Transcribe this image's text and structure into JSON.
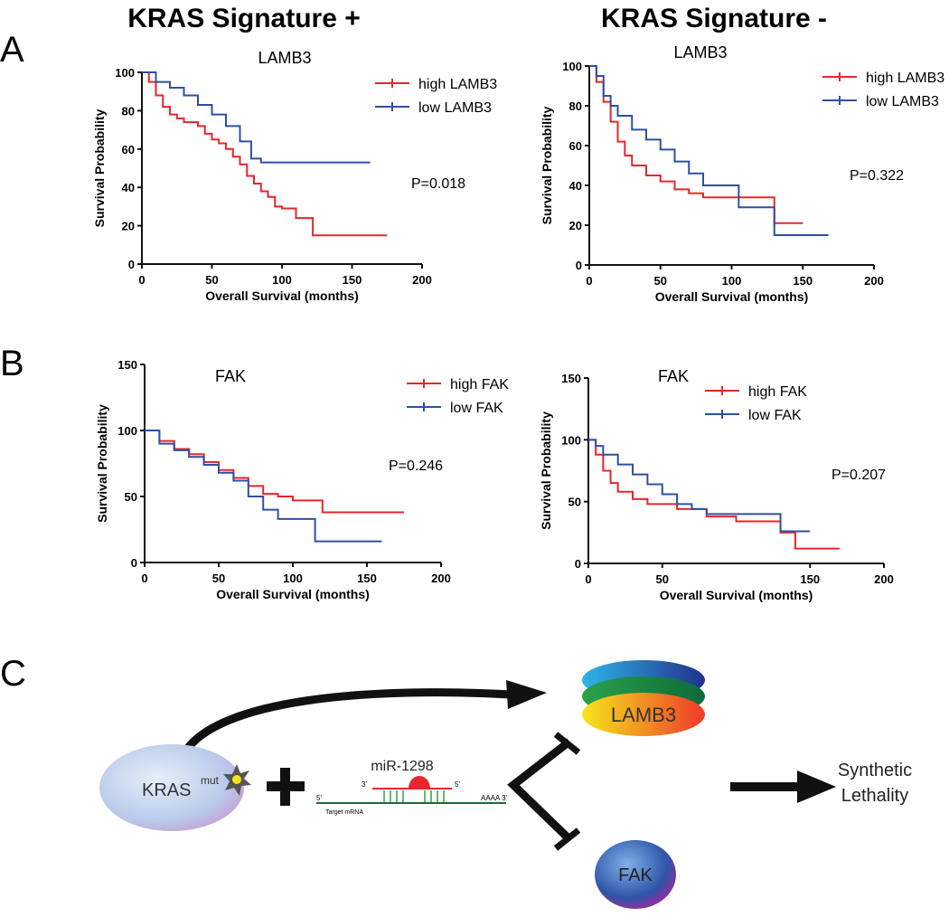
{
  "headers": [
    "KRAS Signature +",
    "KRAS Signature -"
  ],
  "panel_labels": [
    "A",
    "B",
    "C"
  ],
  "chart_data": [
    {
      "type": "line",
      "step": true,
      "title": "LAMB3",
      "xlabel": "Overall Survival (months)",
      "ylabel": "Survival Probability",
      "annotation": "P=0.018",
      "xlim": [
        0,
        200
      ],
      "ylim": [
        0,
        100
      ],
      "xticks": [
        0,
        50,
        100,
        150,
        200
      ],
      "yticks": [
        0,
        20,
        40,
        60,
        80,
        100
      ],
      "series": [
        {
          "name": "high LAMB3",
          "color": "#e8262b",
          "x": [
            0,
            5,
            10,
            15,
            20,
            25,
            30,
            40,
            45,
            50,
            55,
            60,
            65,
            70,
            75,
            80,
            85,
            90,
            95,
            100,
            110,
            122,
            175
          ],
          "values": [
            100,
            95,
            88,
            82,
            78,
            76,
            74,
            72,
            68,
            65,
            63,
            60,
            56,
            52,
            46,
            42,
            38,
            35,
            30,
            29,
            24,
            15,
            15
          ]
        },
        {
          "name": "low LAMB3",
          "color": "#2e4fa3",
          "x": [
            0,
            10,
            20,
            30,
            40,
            50,
            60,
            70,
            78,
            85,
            163
          ],
          "values": [
            100,
            95,
            92,
            88,
            83,
            78,
            72,
            64,
            55,
            53,
            53
          ]
        }
      ]
    },
    {
      "type": "line",
      "step": true,
      "title": "LAMB3",
      "xlabel": "Overall Survival (months)",
      "ylabel": "Survival Probability",
      "annotation": "P=0.322",
      "xlim": [
        0,
        200
      ],
      "ylim": [
        0,
        100
      ],
      "xticks": [
        0,
        50,
        100,
        150,
        200
      ],
      "yticks": [
        0,
        20,
        40,
        60,
        80,
        100
      ],
      "series": [
        {
          "name": "high LAMB3",
          "color": "#e8262b",
          "x": [
            0,
            5,
            10,
            15,
            20,
            25,
            30,
            40,
            50,
            60,
            70,
            80,
            130,
            150
          ],
          "values": [
            100,
            92,
            82,
            72,
            62,
            55,
            50,
            45,
            42,
            38,
            36,
            34,
            21,
            21
          ]
        },
        {
          "name": "low LAMB3",
          "color": "#2e4fa3",
          "x": [
            0,
            5,
            10,
            15,
            20,
            30,
            40,
            50,
            60,
            70,
            80,
            105,
            130,
            168
          ],
          "values": [
            100,
            95,
            85,
            80,
            75,
            68,
            63,
            58,
            52,
            46,
            40,
            29,
            15,
            15
          ]
        }
      ]
    },
    {
      "type": "line",
      "step": true,
      "title": "FAK",
      "xlabel": "Overall Survival (months)",
      "ylabel": "Survival Probability",
      "annotation": "P=0.246",
      "xlim": [
        0,
        200
      ],
      "ylim": [
        0,
        150
      ],
      "xticks": [
        0,
        50,
        100,
        150,
        200
      ],
      "yticks": [
        0,
        50,
        100,
        150
      ],
      "series": [
        {
          "name": "high FAK",
          "color": "#e8262b",
          "x": [
            0,
            10,
            20,
            30,
            40,
            50,
            60,
            70,
            80,
            90,
            100,
            120,
            175
          ],
          "values": [
            100,
            92,
            86,
            82,
            76,
            70,
            64,
            58,
            52,
            50,
            47,
            38,
            38
          ]
        },
        {
          "name": "low FAK",
          "color": "#2e4fa3",
          "x": [
            0,
            10,
            20,
            30,
            40,
            50,
            60,
            70,
            80,
            90,
            115,
            160
          ],
          "values": [
            100,
            90,
            85,
            80,
            74,
            68,
            62,
            50,
            40,
            33,
            16,
            16
          ]
        }
      ]
    },
    {
      "type": "line",
      "step": true,
      "title": "FAK",
      "xlabel": "Overall Survival (months)",
      "ylabel": "Survival Probability",
      "annotation": "P=0.207",
      "xlim": [
        0,
        200
      ],
      "ylim": [
        0,
        150
      ],
      "xticks": [
        0,
        50,
        150,
        200
      ],
      "yticks": [
        0,
        50,
        100,
        150
      ],
      "series": [
        {
          "name": "high FAK",
          "color": "#e8262b",
          "x": [
            0,
            5,
            10,
            15,
            20,
            30,
            40,
            60,
            80,
            100,
            130,
            140,
            170
          ],
          "values": [
            100,
            88,
            75,
            65,
            58,
            52,
            48,
            44,
            38,
            34,
            25,
            12,
            12
          ]
        },
        {
          "name": "low FAK",
          "color": "#2e4fa3",
          "x": [
            0,
            5,
            10,
            20,
            30,
            40,
            50,
            60,
            70,
            80,
            130,
            150
          ],
          "values": [
            100,
            95,
            88,
            80,
            72,
            64,
            56,
            48,
            44,
            40,
            26,
            26
          ]
        }
      ]
    }
  ],
  "diagram": {
    "lamb3": "LAMB3",
    "kras": "KRAS",
    "mut": "mut",
    "mirna": "miR-1298",
    "three_prime": "3'",
    "five_prime": "5'",
    "mrna_five": "5'",
    "mrna_three": "AAAA 3'",
    "target": "Target mRNA",
    "fak": "FAK",
    "outcome": [
      "Synthetic",
      "Lethality"
    ]
  }
}
